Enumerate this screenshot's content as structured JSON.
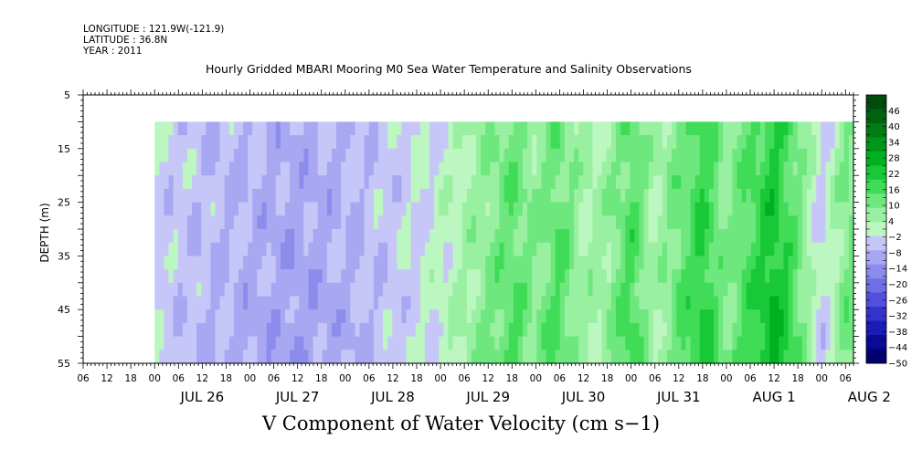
{
  "header": {
    "longitude": "LONGITUDE : 121.9W(-121.9)",
    "latitude": "LATITUDE : 36.8N",
    "year": "YEAR : 2011"
  },
  "chart_data": {
    "type": "heatmap",
    "title": "Hourly Gridded MBARI Mooring M0 Sea Water Temperature and Salinity Observations",
    "xlabel": "",
    "ylabel": "DEPTH (m)",
    "variable_label": "V Component of Water Velocity (cm s−1)",
    "x_range": [
      "2011-07-25 06:00",
      "2011-08-02 08:00"
    ],
    "y_range_m": [
      5,
      55
    ],
    "y_reversed": true,
    "y_ticks": [
      5,
      15,
      25,
      35,
      45,
      55
    ],
    "hour_tick_labels": [
      "06",
      "12",
      "18",
      "00",
      "06",
      "12",
      "18",
      "00",
      "06",
      "12",
      "18",
      "00",
      "06",
      "12",
      "18",
      "00",
      "06",
      "12",
      "18",
      "00",
      "06",
      "12",
      "18",
      "00",
      "06",
      "12",
      "18",
      "00",
      "06",
      "12",
      "18",
      "00",
      "06"
    ],
    "day_labels": [
      {
        "label": "JUL 26",
        "date": "2011-07-26"
      },
      {
        "label": "JUL 27",
        "date": "2011-07-27"
      },
      {
        "label": "JUL 28",
        "date": "2011-07-28"
      },
      {
        "label": "JUL 29",
        "date": "2011-07-29"
      },
      {
        "label": "JUL 30",
        "date": "2011-07-30"
      },
      {
        "label": "JUL 31",
        "date": "2011-07-31"
      },
      {
        "label": "AUG  1",
        "date": "2011-08-01"
      },
      {
        "label": "AUG  2",
        "date": "2011-08-02"
      }
    ],
    "data_depth_range_m": [
      10,
      55
    ],
    "colorbar": {
      "labels": [
        "46",
        "40",
        "34",
        "28",
        "22",
        "16",
        "10",
        "4",
        "−2",
        "−8",
        "−14",
        "−20",
        "−26",
        "−32",
        "−38",
        "−44",
        "−50"
      ],
      "min": -50,
      "max": 52,
      "step": 3,
      "colors_high_to_low": [
        "#004a0c",
        "#00620f",
        "#007c14",
        "#00961a",
        "#00b020",
        "#18c836",
        "#40dc58",
        "#6ee87e",
        "#98f0a0",
        "#bcf6c0",
        "#c6c6f8",
        "#a8a8f2",
        "#8c8cec",
        "#6e6ee6",
        "#5050dc",
        "#3434cc",
        "#1c1cb4",
        "#0a0a96",
        "#00006e"
      ]
    },
    "time_profile": [
      {
        "time": "2011-07-26 00:00",
        "v_cm_s": -3
      },
      {
        "time": "2011-07-26 12:00",
        "v_cm_s": -6
      },
      {
        "time": "2011-07-27 00:00",
        "v_cm_s": -8
      },
      {
        "time": "2011-07-27 12:00",
        "v_cm_s": -10
      },
      {
        "time": "2011-07-28 00:00",
        "v_cm_s": -8
      },
      {
        "time": "2011-07-28 12:00",
        "v_cm_s": -4
      },
      {
        "time": "2011-07-29 00:00",
        "v_cm_s": 0
      },
      {
        "time": "2011-07-29 12:00",
        "v_cm_s": 8
      },
      {
        "time": "2011-07-29 18:00",
        "v_cm_s": 14
      },
      {
        "time": "2011-07-30 00:00",
        "v_cm_s": 8
      },
      {
        "time": "2011-07-30 06:00",
        "v_cm_s": 14
      },
      {
        "time": "2011-07-30 12:00",
        "v_cm_s": 4
      },
      {
        "time": "2011-07-30 18:00",
        "v_cm_s": 6
      },
      {
        "time": "2011-07-31 00:00",
        "v_cm_s": 16
      },
      {
        "time": "2011-07-31 06:00",
        "v_cm_s": 4
      },
      {
        "time": "2011-07-31 12:00",
        "v_cm_s": 12
      },
      {
        "time": "2011-07-31 18:00",
        "v_cm_s": 20
      },
      {
        "time": "2011-08-01 00:00",
        "v_cm_s": 8
      },
      {
        "time": "2011-08-01 06:00",
        "v_cm_s": 16
      },
      {
        "time": "2011-08-01 12:00",
        "v_cm_s": 24
      },
      {
        "time": "2011-08-01 18:00",
        "v_cm_s": 12
      },
      {
        "time": "2011-08-02 00:00",
        "v_cm_s": -4
      },
      {
        "time": "2011-08-02 06:00",
        "v_cm_s": 10
      }
    ]
  }
}
